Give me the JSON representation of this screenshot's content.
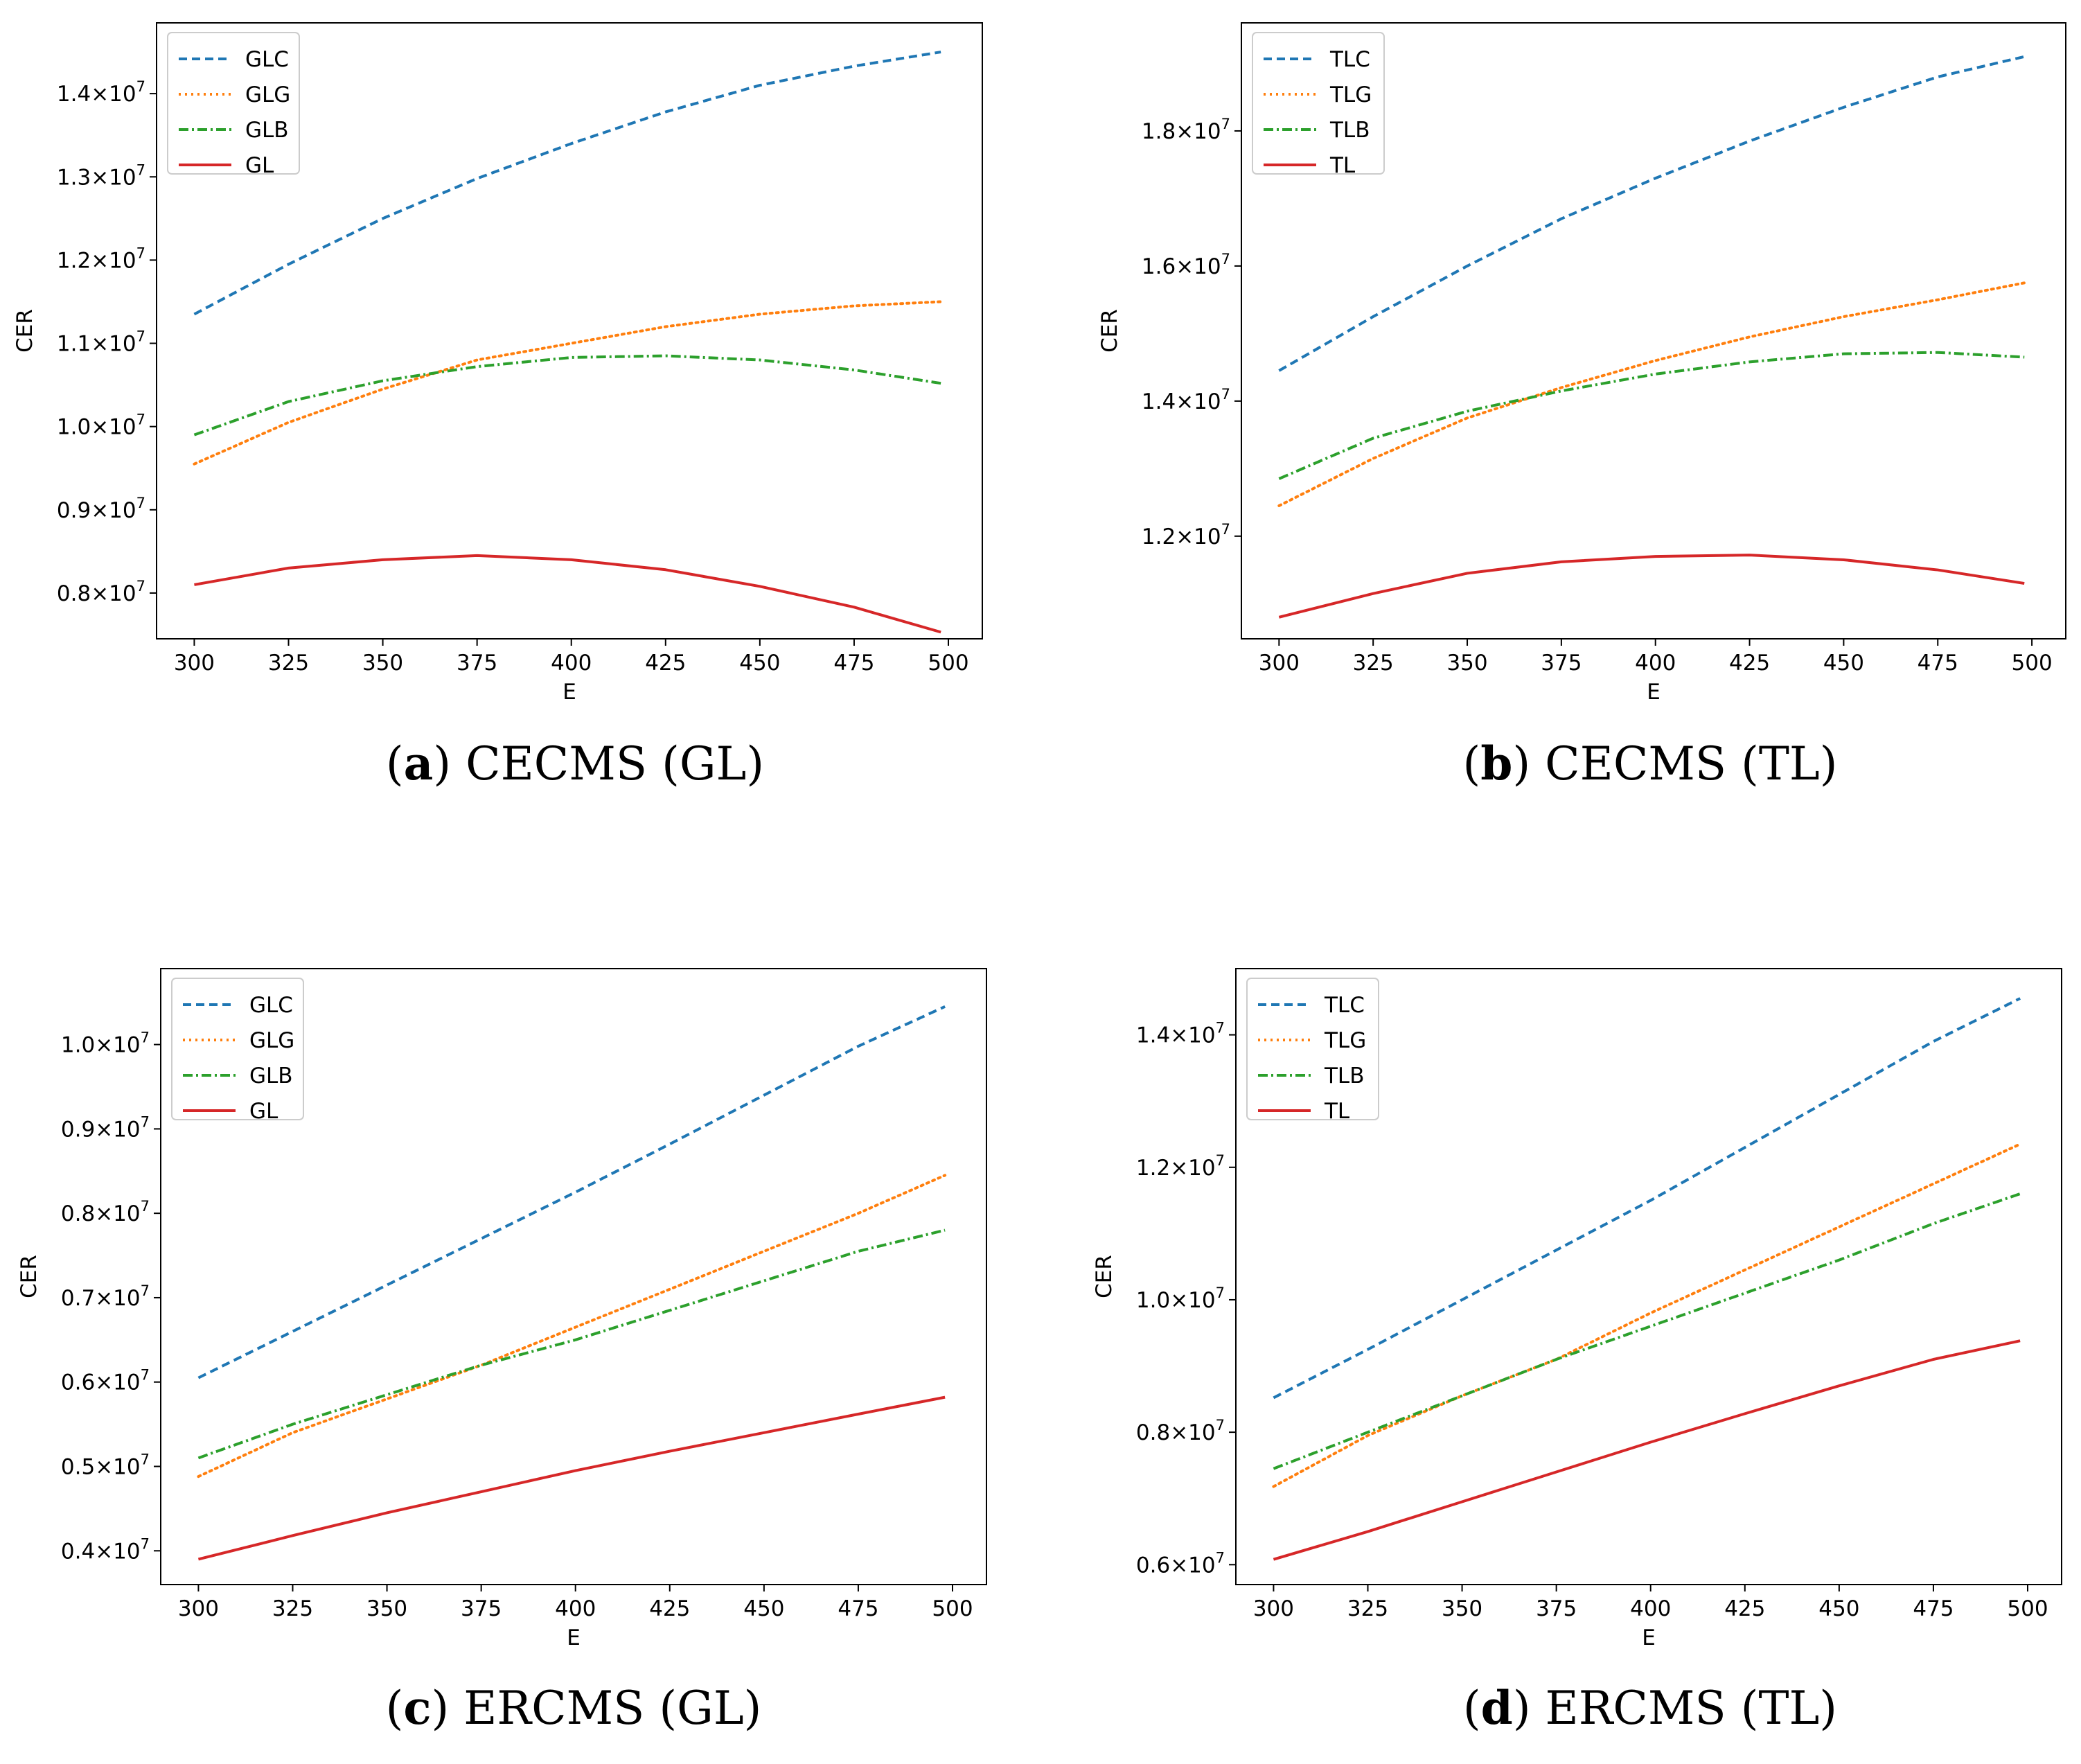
{
  "colors": {
    "C": "#1f77b4",
    "G": "#ff7f0e",
    "B": "#2ca02c",
    "L": "#d62728"
  },
  "chart_data": [
    {
      "type": "line",
      "caption_letter": "a",
      "caption_text": "CECMS (GL)",
      "xlabel": "E",
      "ylabel": "CER",
      "xlim": [
        290,
        509
      ],
      "ylim": [
        7.45,
        14.85
      ],
      "xticks": [
        300,
        325,
        350,
        375,
        400,
        425,
        450,
        475,
        500
      ],
      "yticks": [
        {
          "v": 8.0,
          "label": "0.8"
        },
        {
          "v": 9.0,
          "label": "0.9"
        },
        {
          "v": 10.0,
          "label": "1.0"
        },
        {
          "v": 11.0,
          "label": "1.1"
        },
        {
          "v": 12.0,
          "label": "1.2"
        },
        {
          "v": 13.0,
          "label": "1.3"
        },
        {
          "v": 14.0,
          "label": "1.4"
        }
      ],
      "ytick_suffix": "×10",
      "ytick_exp": "7",
      "x": [
        300,
        325,
        350,
        375,
        400,
        425,
        450,
        475,
        498
      ],
      "series": [
        {
          "name": "GLC",
          "key": "C",
          "dash": "12,7",
          "values": [
            11.35,
            11.95,
            12.5,
            12.98,
            13.4,
            13.78,
            14.1,
            14.33,
            14.5
          ]
        },
        {
          "name": "GLG",
          "key": "G",
          "dash": "3,6",
          "values": [
            9.55,
            10.05,
            10.45,
            10.8,
            11.0,
            11.2,
            11.35,
            11.45,
            11.5
          ]
        },
        {
          "name": "GLB",
          "key": "B",
          "dash": "14,5,3,5",
          "values": [
            9.9,
            10.3,
            10.55,
            10.72,
            10.83,
            10.85,
            10.8,
            10.68,
            10.52
          ]
        },
        {
          "name": "GL",
          "key": "L",
          "dash": "",
          "values": [
            8.1,
            8.3,
            8.4,
            8.45,
            8.4,
            8.28,
            8.08,
            7.83,
            7.53
          ]
        }
      ]
    },
    {
      "type": "line",
      "caption_letter": "b",
      "caption_text": "CECMS (TL)",
      "xlabel": "E",
      "ylabel": "CER",
      "xlim": [
        290,
        509
      ],
      "ylim": [
        10.48,
        19.6
      ],
      "xticks": [
        300,
        325,
        350,
        375,
        400,
        425,
        450,
        475,
        500
      ],
      "yticks": [
        {
          "v": 12.0,
          "label": "1.2"
        },
        {
          "v": 14.0,
          "label": "1.4"
        },
        {
          "v": 16.0,
          "label": "1.6"
        },
        {
          "v": 18.0,
          "label": "1.8"
        }
      ],
      "ytick_suffix": "×10",
      "ytick_exp": "7",
      "x": [
        300,
        325,
        350,
        375,
        400,
        425,
        450,
        475,
        498
      ],
      "series": [
        {
          "name": "TLC",
          "key": "C",
          "dash": "12,7",
          "values": [
            14.45,
            15.25,
            16.0,
            16.7,
            17.3,
            17.85,
            18.35,
            18.8,
            19.1
          ]
        },
        {
          "name": "TLG",
          "key": "G",
          "dash": "3,6",
          "values": [
            12.45,
            13.15,
            13.75,
            14.2,
            14.6,
            14.95,
            15.25,
            15.5,
            15.75
          ]
        },
        {
          "name": "TLB",
          "key": "B",
          "dash": "14,5,3,5",
          "values": [
            12.85,
            13.45,
            13.85,
            14.15,
            14.4,
            14.58,
            14.7,
            14.72,
            14.65
          ]
        },
        {
          "name": "TL",
          "key": "L",
          "dash": "",
          "values": [
            10.8,
            11.15,
            11.45,
            11.62,
            11.7,
            11.72,
            11.65,
            11.5,
            11.3
          ]
        }
      ]
    },
    {
      "type": "line",
      "caption_letter": "c",
      "caption_text": "ERCMS (GL)",
      "xlabel": "E",
      "ylabel": "CER",
      "xlim": [
        290,
        509
      ],
      "ylim": [
        3.6,
        10.9
      ],
      "xticks": [
        300,
        325,
        350,
        375,
        400,
        425,
        450,
        475,
        500
      ],
      "yticks": [
        {
          "v": 4.0,
          "label": "0.4"
        },
        {
          "v": 5.0,
          "label": "0.5"
        },
        {
          "v": 6.0,
          "label": "0.6"
        },
        {
          "v": 7.0,
          "label": "0.7"
        },
        {
          "v": 8.0,
          "label": "0.8"
        },
        {
          "v": 9.0,
          "label": "0.9"
        },
        {
          "v": 10.0,
          "label": "1.0"
        }
      ],
      "ytick_suffix": "×10",
      "ytick_exp": "7",
      "x": [
        300,
        325,
        350,
        375,
        400,
        425,
        450,
        475,
        498
      ],
      "series": [
        {
          "name": "GLC",
          "key": "C",
          "dash": "12,7",
          "values": [
            6.05,
            6.6,
            7.15,
            7.7,
            8.25,
            8.82,
            9.4,
            9.98,
            10.45
          ]
        },
        {
          "name": "GLG",
          "key": "G",
          "dash": "3,6",
          "values": [
            4.88,
            5.4,
            5.8,
            6.2,
            6.65,
            7.1,
            7.55,
            8.0,
            8.45
          ]
        },
        {
          "name": "GLB",
          "key": "B",
          "dash": "14,5,3,5",
          "values": [
            5.1,
            5.5,
            5.85,
            6.2,
            6.5,
            6.85,
            7.2,
            7.55,
            7.8
          ]
        },
        {
          "name": "GL",
          "key": "L",
          "dash": "",
          "values": [
            3.9,
            4.18,
            4.45,
            4.7,
            4.95,
            5.18,
            5.4,
            5.62,
            5.82
          ]
        }
      ]
    },
    {
      "type": "line",
      "caption_letter": "d",
      "caption_text": "ERCMS (TL)",
      "xlabel": "E",
      "ylabel": "CER",
      "xlim": [
        290,
        509
      ],
      "ylim": [
        5.7,
        15.0
      ],
      "xticks": [
        300,
        325,
        350,
        375,
        400,
        425,
        450,
        475,
        500
      ],
      "yticks": [
        {
          "v": 6.0,
          "label": "0.6"
        },
        {
          "v": 8.0,
          "label": "0.8"
        },
        {
          "v": 10.0,
          "label": "1.0"
        },
        {
          "v": 12.0,
          "label": "1.2"
        },
        {
          "v": 14.0,
          "label": "1.4"
        }
      ],
      "ytick_suffix": "×10",
      "ytick_exp": "7",
      "x": [
        300,
        325,
        350,
        375,
        400,
        425,
        450,
        475,
        498
      ],
      "series": [
        {
          "name": "TLC",
          "key": "C",
          "dash": "12,7",
          "values": [
            8.52,
            9.25,
            10.0,
            10.75,
            11.5,
            12.3,
            13.1,
            13.9,
            14.55
          ]
        },
        {
          "name": "TLG",
          "key": "G",
          "dash": "3,6",
          "values": [
            7.18,
            7.95,
            8.55,
            9.1,
            9.8,
            10.45,
            11.1,
            11.75,
            12.35
          ]
        },
        {
          "name": "TLB",
          "key": "B",
          "dash": "14,5,3,5",
          "values": [
            7.45,
            8.0,
            8.55,
            9.1,
            9.6,
            10.1,
            10.6,
            11.15,
            11.6
          ]
        },
        {
          "name": "TL",
          "key": "L",
          "dash": "",
          "values": [
            6.08,
            6.5,
            6.95,
            7.4,
            7.85,
            8.28,
            8.7,
            9.1,
            9.38
          ]
        }
      ]
    }
  ]
}
